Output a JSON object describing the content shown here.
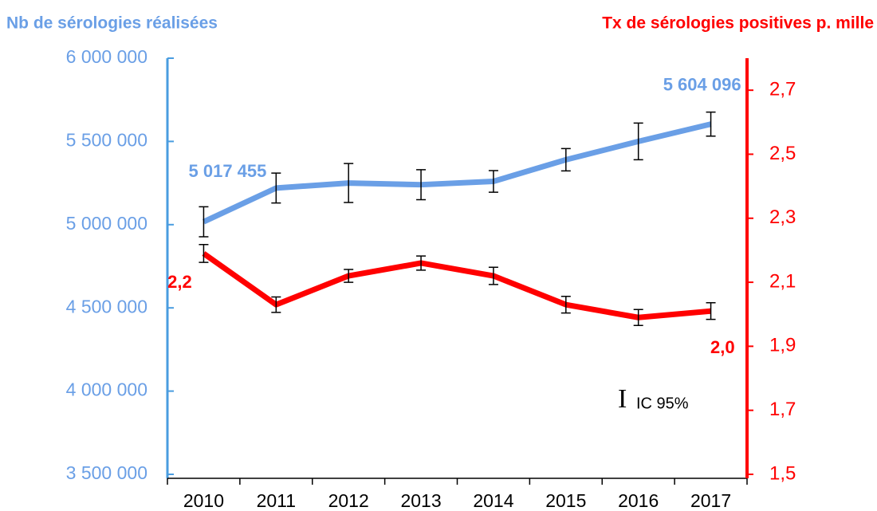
{
  "chart_data": {
    "type": "line",
    "y_label": "Nb de sérologies réalisées",
    "y2_label": "Tx de sérologies positives p. mille",
    "legend_label": "IC 95%",
    "categories": [
      "2010",
      "2011",
      "2012",
      "2013",
      "2014",
      "2015",
      "2016",
      "2017"
    ],
    "series": [
      {
        "color": "#6a9fe6",
        "axis": "y",
        "values": [
          5017455,
          5220000,
          5250000,
          5240000,
          5260000,
          5390000,
          5500000,
          5604096
        ],
        "errors": [
          90000,
          90000,
          117000,
          90000,
          65000,
          67000,
          110000,
          72000
        ],
        "value_labels": [
          "5 017 455",
          null,
          null,
          null,
          null,
          null,
          null,
          "5 604 096"
        ]
      },
      {
        "color": "#ff0000",
        "axis": "y2",
        "values": [
          2.19,
          2.03,
          2.12,
          2.16,
          2.12,
          2.03,
          1.99,
          2.01
        ],
        "errors": [
          0.028,
          0.024,
          0.02,
          0.022,
          0.027,
          0.026,
          0.025,
          0.026
        ],
        "value_labels": [
          "2,2",
          null,
          null,
          null,
          null,
          null,
          null,
          "2,0"
        ]
      }
    ],
    "ylim": [
      3500000,
      6000000
    ],
    "yticks": [
      {
        "value": 3500000,
        "label": "3 500 000"
      },
      {
        "value": 4000000,
        "label": "4 000 000"
      },
      {
        "value": 4500000,
        "label": "4 500 000"
      },
      {
        "value": 5000000,
        "label": "5 000 000"
      },
      {
        "value": 5500000,
        "label": "5 500 000"
      },
      {
        "value": 6000000,
        "label": "6 000 000"
      }
    ],
    "y2lim": [
      1.5,
      2.8
    ],
    "y2ticks": [
      {
        "value": 1.5,
        "label": "1,5"
      },
      {
        "value": 1.7,
        "label": "1,7"
      },
      {
        "value": 1.9,
        "label": "1,9"
      },
      {
        "value": 2.1,
        "label": "2,1"
      },
      {
        "value": 2.3,
        "label": "2,3"
      },
      {
        "value": 2.5,
        "label": "2,5"
      },
      {
        "value": 2.7,
        "label": "2,7"
      }
    ],
    "ycolor": "#4a9de0",
    "y2color": "#ff0000"
  }
}
